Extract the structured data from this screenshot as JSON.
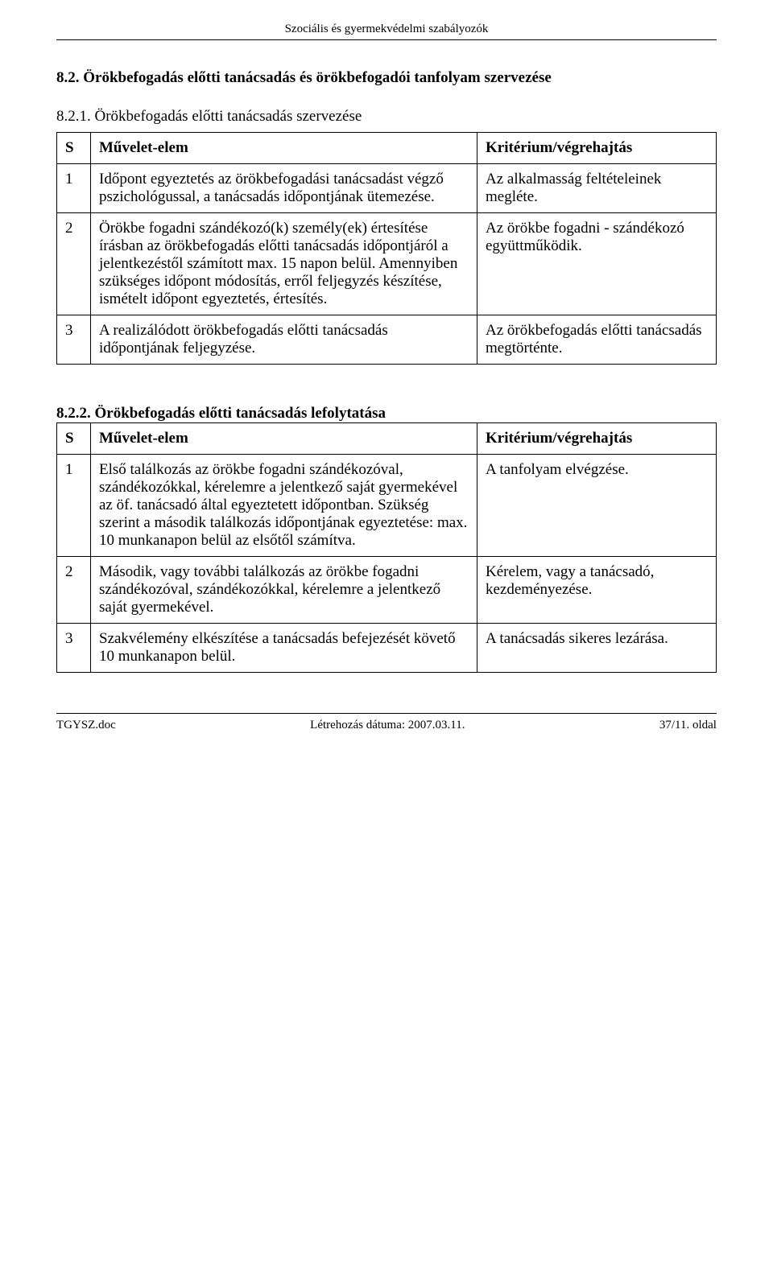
{
  "running_header": "Szociális és gyermekvédelmi szabályozók",
  "section_82_title": "8.2. Örökbefogadás előtti tanácsadás és örökbefogadói tanfolyam szervezése",
  "section_821_title": "8.2.1. Örökbefogadás előtti tanácsadás szervezése",
  "table1": {
    "head": {
      "s": "S",
      "op": "Művelet-elem",
      "crit": "Kritérium/végrehajtás"
    },
    "rows": [
      {
        "n": "1",
        "op": "Időpont egyeztetés az örökbefogadási tanácsadást végző pszichológussal, a tanácsadás időpontjának ütemezése.",
        "crit": "Az alkalmasság feltételeinek megléte."
      },
      {
        "n": "2",
        "op": "Örökbe fogadni szándékozó(k) személy(ek) értesítése írásban az örökbefogadás előtti tanácsadás időpontjáról a jelentkezéstől számított max. 15 napon belül. Amennyiben szükséges időpont módosítás, erről feljegyzés készítése, ismételt időpont egyeztetés, értesítés.",
        "crit": "Az örökbe fogadni - szándékozó együttműködik."
      },
      {
        "n": "3",
        "op": "A realizálódott örökbefogadás előtti tanácsadás időpontjának feljegyzése.",
        "crit": "Az örökbefogadás előtti tanácsadás megtörténte."
      }
    ]
  },
  "section_822_prefix": "8.2.2. Örökbefogadás előtti tanácsadás lefolytatása",
  "table2": {
    "head": {
      "s": "S",
      "op": "Művelet-elem",
      "crit": "Kritérium/végrehajtás"
    },
    "rows": [
      {
        "n": "1",
        "op": "Első találkozás az örökbe fogadni szándékozóval, szándékozókkal, kérelemre a jelentkező saját gyermekével az öf. tanácsadó által egyeztetett időpontban. Szükség szerint a második találkozás időpontjának egyeztetése: max. 10 munkanapon belül az elsőtől számítva.",
        "crit": "A tanfolyam elvégzése."
      },
      {
        "n": "2",
        "op": "Második, vagy további találkozás az örökbe fogadni szándékozóval, szándékozókkal, kérelemre a jelentkező saját gyermekével.",
        "crit": "Kérelem, vagy a tanácsadó, kezdeményezése."
      },
      {
        "n": "3",
        "op": "Szakvélemény elkészítése a tanácsadás befejezését követő 10 munkanapon belül.",
        "crit": "A tanácsadás sikeres lezárása."
      }
    ]
  },
  "footer": {
    "left": "TGYSZ.doc",
    "center": "Létrehozás dátuma: 2007.03.11.",
    "right": "37/11. oldal"
  }
}
